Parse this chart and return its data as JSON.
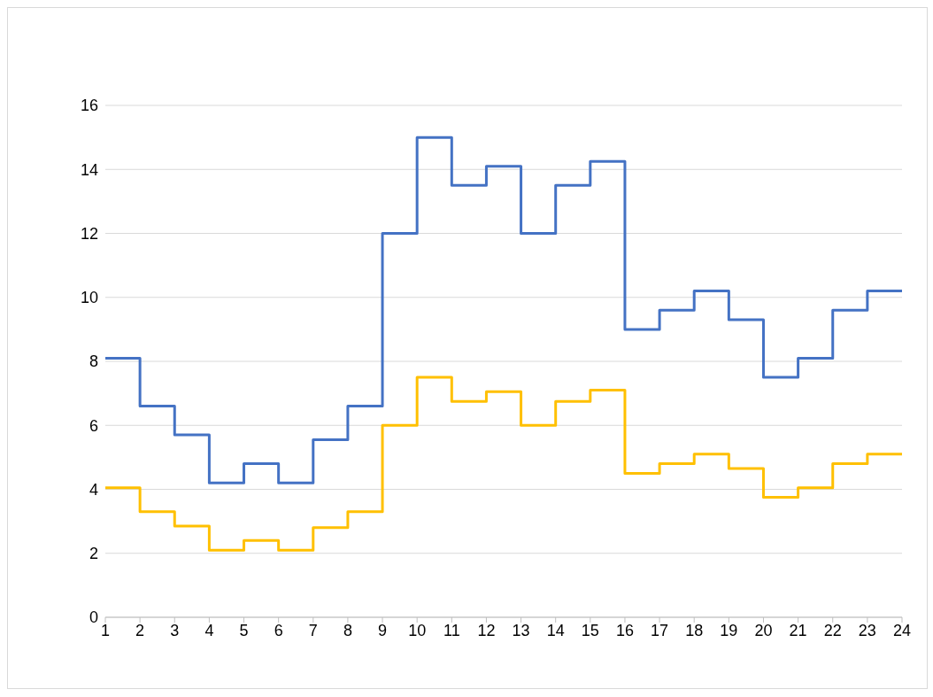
{
  "chart_data": {
    "type": "step",
    "x": [
      1,
      2,
      3,
      4,
      5,
      6,
      7,
      8,
      9,
      10,
      11,
      12,
      13,
      14,
      15,
      16,
      17,
      18,
      19,
      20,
      21,
      22,
      23,
      24
    ],
    "series": [
      {
        "color": "#4472c4",
        "values": [
          8.1,
          6.6,
          5.7,
          4.2,
          4.8,
          4.2,
          5.55,
          6.6,
          12,
          15,
          13.5,
          14.1,
          12,
          13.5,
          14.25,
          9,
          9.6,
          10.2,
          9.3,
          7.5,
          8.1,
          9.6,
          10.2,
          10.2
        ]
      },
      {
        "color": "#ffc000",
        "values": [
          4.05,
          3.3,
          2.85,
          2.1,
          2.4,
          2.1,
          2.8,
          3.3,
          6,
          7.5,
          6.75,
          7.05,
          6,
          6.75,
          7.1,
          4.5,
          4.8,
          5.1,
          4.65,
          3.75,
          4.05,
          4.8,
          5.1,
          5.1
        ]
      }
    ],
    "xlim": [
      1,
      24
    ],
    "xticks": [
      1,
      2,
      3,
      4,
      5,
      6,
      7,
      8,
      9,
      10,
      11,
      12,
      13,
      14,
      15,
      16,
      17,
      18,
      19,
      20,
      21,
      22,
      23,
      24
    ],
    "ylim": [
      0,
      16
    ],
    "yticks": [
      0,
      2,
      4,
      6,
      8,
      10,
      12,
      14,
      16
    ],
    "grid": "y"
  }
}
